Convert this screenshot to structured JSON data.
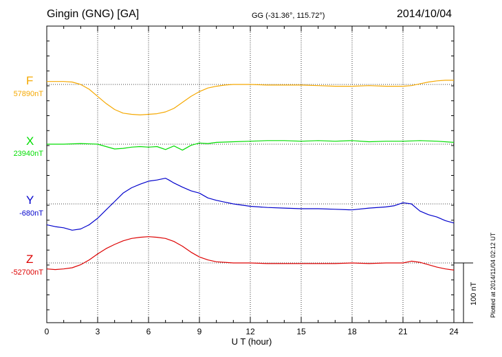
{
  "header": {
    "station": "Gingin (GNG)  [GA]",
    "coords": "GG (-31.36°, 115.72°)",
    "date": "2014/10/04"
  },
  "footer": {
    "plotted": "Plotted at 2014/11/04 02:12 UT"
  },
  "colors": {
    "F": "#f5a800",
    "X": "#00dd00",
    "Y": "#0000cc",
    "Z": "#dd0000"
  },
  "chart_data": {
    "type": "line",
    "xlabel": "U T (hour)",
    "xlim": [
      0,
      24
    ],
    "xticks": [
      0,
      3,
      6,
      9,
      12,
      15,
      18,
      21,
      24
    ],
    "grid": true,
    "scale_bar": {
      "label": "100 nT",
      "value": 100
    },
    "series": [
      {
        "name": "F",
        "baseline_label": "57890nT",
        "x": [
          0,
          0.5,
          1,
          1.5,
          2,
          2.5,
          3,
          3.5,
          4,
          4.5,
          5,
          5.5,
          6,
          6.5,
          7,
          7.5,
          8,
          8.5,
          9,
          9.5,
          10,
          10.5,
          11,
          11.5,
          12,
          13,
          14,
          15,
          16,
          17,
          18,
          19,
          20,
          21,
          21.5,
          22,
          22.5,
          23,
          23.5,
          24
        ],
        "y": [
          5,
          5,
          5,
          4,
          0,
          -8,
          -20,
          -32,
          -42,
          -48,
          -50,
          -51,
          -50,
          -49,
          -46,
          -40,
          -30,
          -20,
          -12,
          -6,
          -3,
          -1,
          0,
          0,
          0,
          -1,
          -1,
          -1,
          -2,
          -3,
          -3,
          -2,
          -3,
          -3,
          -2,
          1,
          4,
          6,
          7,
          7
        ]
      },
      {
        "name": "X",
        "baseline_label": "23940nT",
        "x": [
          0,
          1,
          2,
          3,
          3.5,
          4,
          4.5,
          5,
          5.5,
          6,
          6.5,
          7,
          7.5,
          8,
          8.5,
          9,
          9.5,
          10,
          11,
          12,
          13,
          14,
          15,
          16,
          17,
          18,
          19,
          20,
          21,
          22,
          23,
          24
        ],
        "y": [
          0,
          0,
          1,
          0,
          -4,
          -8,
          -7,
          -5,
          -4,
          -5,
          -4,
          -9,
          -3,
          -10,
          -2,
          2,
          1,
          3,
          4,
          5,
          6,
          6,
          5,
          6,
          5,
          6,
          4,
          5,
          5,
          6,
          5,
          3
        ]
      },
      {
        "name": "Y",
        "baseline_label": "-680nT",
        "x": [
          0,
          0.5,
          1,
          1.5,
          2,
          2.5,
          3,
          3.5,
          4,
          4.5,
          5,
          5.5,
          6,
          6.5,
          7,
          7.2,
          7.5,
          8,
          8.5,
          9,
          9.5,
          10,
          10.5,
          11,
          12,
          13,
          14,
          15,
          16,
          17,
          18,
          19,
          20,
          20.5,
          21,
          21.5,
          22,
          22.5,
          23,
          23.5,
          24
        ],
        "y": [
          -35,
          -38,
          -40,
          -44,
          -42,
          -35,
          -24,
          -10,
          4,
          18,
          27,
          33,
          38,
          40,
          43,
          40,
          35,
          28,
          22,
          18,
          10,
          6,
          3,
          0,
          -4,
          -6,
          -7,
          -8,
          -8,
          -9,
          -10,
          -7,
          -5,
          -3,
          2,
          0,
          -12,
          -18,
          -22,
          -28,
          -32
        ]
      },
      {
        "name": "Z",
        "baseline_label": "-52700nT",
        "x": [
          0,
          0.5,
          1,
          1.5,
          2,
          2.5,
          3,
          3.5,
          4,
          4.5,
          5,
          5.5,
          6,
          6.5,
          7,
          7.5,
          8,
          8.5,
          9,
          9.5,
          10,
          11,
          12,
          13,
          14,
          15,
          16,
          17,
          18,
          19,
          20,
          21,
          21.5,
          22,
          22.5,
          23,
          23.5,
          24
        ],
        "y": [
          -10,
          -11,
          -10,
          -8,
          -3,
          5,
          15,
          24,
          31,
          37,
          41,
          43,
          44,
          43,
          41,
          36,
          28,
          18,
          10,
          5,
          2,
          0,
          0,
          -1,
          -1,
          -1,
          -1,
          -1,
          0,
          -1,
          0,
          0,
          3,
          1,
          -3,
          -7,
          -10,
          -12
        ]
      }
    ]
  }
}
